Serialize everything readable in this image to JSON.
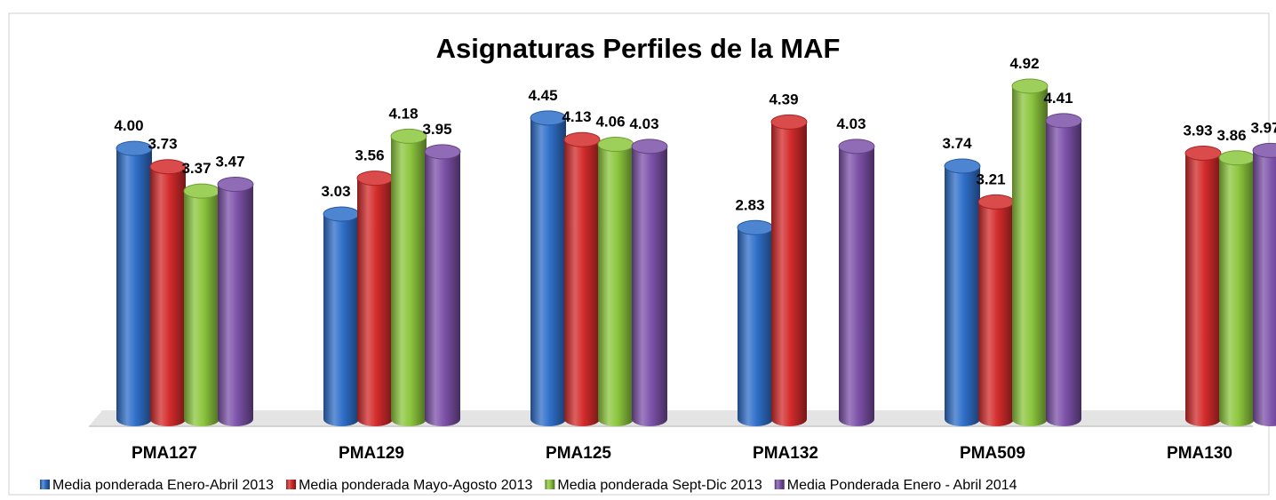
{
  "chart_data": {
    "type": "bar",
    "style": "cylinder-3d",
    "title": "Asignaturas Perfiles de la MAF",
    "categories": [
      "PMA127",
      "PMA129",
      "PMA125",
      "PMA132",
      "PMA509",
      "PMA130"
    ],
    "series": [
      {
        "name": "Media ponderada Enero-Abril 2013",
        "color": "#2f6fc9",
        "values": [
          4.0,
          3.03,
          4.45,
          2.83,
          3.74,
          null
        ],
        "value_labels": [
          "4.00",
          "3.03",
          "4.45",
          "2.83",
          "3.74",
          null
        ]
      },
      {
        "name": "Media ponderada Mayo-Agosto 2013",
        "color": "#d32b2b",
        "values": [
          3.73,
          3.56,
          4.13,
          4.39,
          3.21,
          3.93
        ],
        "value_labels": [
          "3.73",
          "3.56",
          "4.13",
          "4.39",
          "3.21",
          "3.93"
        ]
      },
      {
        "name": "Media ponderada Sept-Dic 2013",
        "color": "#8cc63e",
        "values": [
          3.37,
          4.18,
          4.06,
          null,
          4.92,
          3.86
        ],
        "value_labels": [
          "3.37",
          "4.18",
          "4.06",
          null,
          "4.92",
          "3.86"
        ]
      },
      {
        "name": "Media Ponderada Enero - Abril 2014",
        "color": "#7d52a9",
        "values": [
          3.47,
          3.95,
          4.03,
          4.03,
          4.41,
          3.97
        ],
        "value_labels": [
          "3.47",
          "3.95",
          "4.03",
          "4.03",
          "4.41",
          "3.97"
        ]
      }
    ],
    "legend": "bottom"
  }
}
